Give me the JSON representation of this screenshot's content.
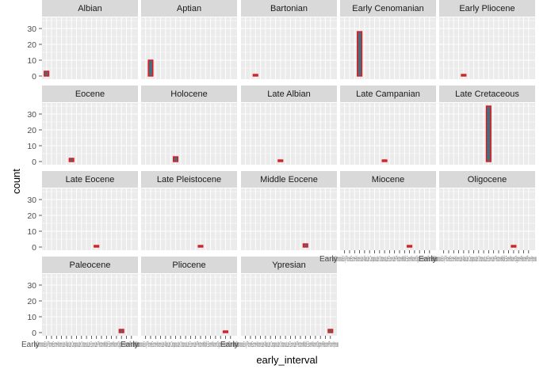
{
  "chart_data": {
    "type": "bar",
    "xlabel": "early_interval",
    "ylabel": "count",
    "ylim": [
      0,
      37
    ],
    "y_ticks": [
      0,
      10,
      20,
      30
    ],
    "grid": true,
    "bar_fill": "#4a6b7a",
    "bar_outline": "#e8141a",
    "panel_background": "#ebebeb",
    "strip_background": "#d9d9d9",
    "x_categories": [
      "Albian",
      "Aptian",
      "Bartonian",
      "Early Cenomanian",
      "Early Pliocene",
      "Eocene",
      "Holocene",
      "Late Albian",
      "Late Campanian",
      "Late Cretaceous",
      "Late Eocene",
      "Late Pleistocene",
      "Middle Eocene",
      "Miocene",
      "Oligocene",
      "Paleocene",
      "Pliocene",
      "Ypresian"
    ],
    "x_tick_text": "Early CenomanianEarly PlioceneEoceneHoloceneLate AlbianLate CampanianLate CretaceousLate EoceneLate PleistoceneMiddle EoceneMioceneOligocenePaleocenePlioceneYpresian",
    "panels": [
      {
        "name": "Albian",
        "category": "Albian",
        "value": 3
      },
      {
        "name": "Aptian",
        "category": "Aptian",
        "value": 10
      },
      {
        "name": "Bartonian",
        "category": "Bartonian",
        "value": 1
      },
      {
        "name": "Early Cenomanian",
        "category": "Early Cenomanian",
        "value": 28
      },
      {
        "name": "Early Pliocene",
        "category": "Early Pliocene",
        "value": 1
      },
      {
        "name": "Eocene",
        "category": "Eocene",
        "value": 2
      },
      {
        "name": "Holocene",
        "category": "Holocene",
        "value": 3
      },
      {
        "name": "Late Albian",
        "category": "Late Albian",
        "value": 1
      },
      {
        "name": "Late Campanian",
        "category": "Late Campanian",
        "value": 1
      },
      {
        "name": "Late Cretaceous",
        "category": "Late Cretaceous",
        "value": 35
      },
      {
        "name": "Late Eocene",
        "category": "Late Eocene",
        "value": 1
      },
      {
        "name": "Late Pleistocene",
        "category": "Late Pleistocene",
        "value": 1
      },
      {
        "name": "Middle Eocene",
        "category": "Middle Eocene",
        "value": 2
      },
      {
        "name": "Miocene",
        "category": "Miocene",
        "value": 1
      },
      {
        "name": "Oligocene",
        "category": "Oligocene",
        "value": 1
      },
      {
        "name": "Paleocene",
        "category": "Paleocene",
        "value": 2
      },
      {
        "name": "Pliocene",
        "category": "Pliocene",
        "value": 1
      },
      {
        "name": "Ypresian",
        "category": "Ypresian",
        "value": 2
      }
    ]
  }
}
